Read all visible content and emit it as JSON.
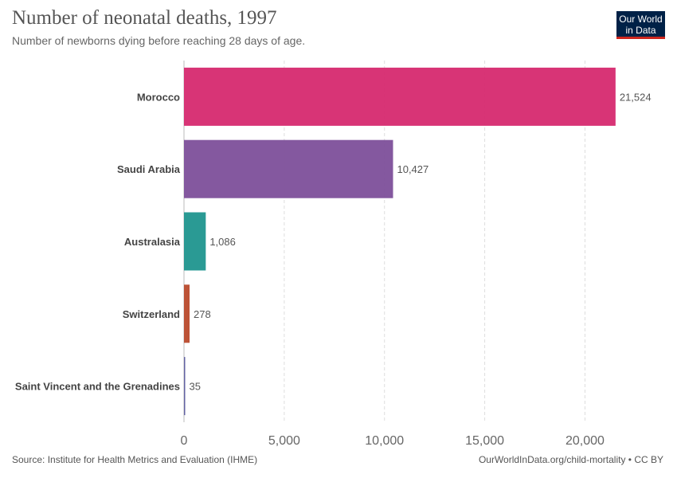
{
  "header": {
    "title": "Number of neonatal deaths, 1997",
    "subtitle": "Number of newborns dying before reaching 28 days of age."
  },
  "logo": {
    "line1": "Our World",
    "line2": "in Data",
    "bg_color": "#002147",
    "accent_color": "#ce261e"
  },
  "footer": {
    "source": "Source: Institute for Health Metrics and Evaluation (IHME)",
    "url": "OurWorldInData.org/child-mortality • CC BY"
  },
  "chart_data": {
    "type": "bar",
    "orientation": "horizontal",
    "title": "Number of neonatal deaths, 1997",
    "subtitle": "Number of newborns dying before reaching 28 days of age.",
    "categories": [
      "Morocco",
      "Saudi Arabia",
      "Australasia",
      "Switzerland",
      "Saint Vincent and the Grenadines"
    ],
    "values": [
      21524,
      10427,
      1086,
      278,
      35
    ],
    "value_labels": [
      "21,524",
      "10,427",
      "1,086",
      "278",
      "35"
    ],
    "colors": [
      "#d6296f",
      "#7d4f9a",
      "#1f958e",
      "#b94a2c",
      "#5c5c9e"
    ],
    "xlim": [
      0,
      23000
    ],
    "x_ticks": [
      0,
      5000,
      10000,
      15000,
      20000
    ],
    "x_tick_labels": [
      "0",
      "5,000",
      "10,000",
      "15,000",
      "20,000"
    ],
    "grid": "vertical-dashed",
    "legend": "none"
  }
}
